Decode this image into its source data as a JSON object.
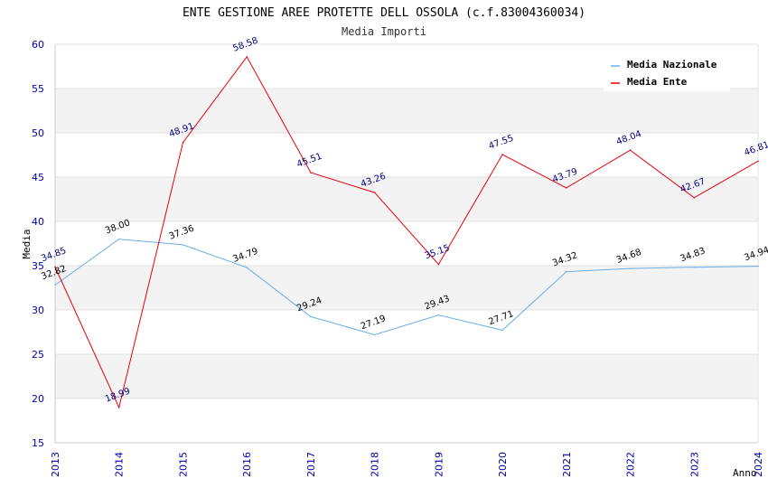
{
  "chart_data": {
    "type": "line",
    "title": "ENTE GESTIONE AREE PROTETTE DELL OSSOLA (c.f.83004360034)",
    "subtitle": "Media Importi",
    "xlabel": "Anno",
    "ylabel": "Media",
    "ylim": [
      15,
      60
    ],
    "yticks": [
      15,
      20,
      25,
      30,
      35,
      40,
      45,
      50,
      55,
      60
    ],
    "categories": [
      "2013",
      "2014",
      "2015",
      "2016",
      "2017",
      "2018",
      "2019",
      "2020",
      "2021",
      "2022",
      "2023",
      "2024"
    ],
    "series": [
      {
        "name": "Media Nazionale",
        "color": "#6aaee8",
        "values": [
          32.82,
          38.0,
          37.36,
          34.79,
          29.24,
          27.19,
          29.43,
          27.71,
          34.32,
          34.68,
          34.83,
          34.94
        ],
        "labels": [
          "32.82",
          "38.00",
          "37.36",
          "34.79",
          "29.24",
          "27.19",
          "29.43",
          "27.71",
          "34.32",
          "34.68",
          "34.83",
          "34.94"
        ]
      },
      {
        "name": "Media Ente",
        "color": "#e8000b",
        "values": [
          34.85,
          18.99,
          48.91,
          58.58,
          45.51,
          43.26,
          35.15,
          47.55,
          43.79,
          48.04,
          42.67,
          46.81
        ],
        "labels": [
          "34.85",
          "18.99",
          "48.91",
          "58.58",
          "45.51",
          "43.26",
          "35.15",
          "47.55",
          "43.79",
          "48.04",
          "42.67",
          "46.81"
        ]
      }
    ],
    "grid": true,
    "legend": "top-right"
  }
}
